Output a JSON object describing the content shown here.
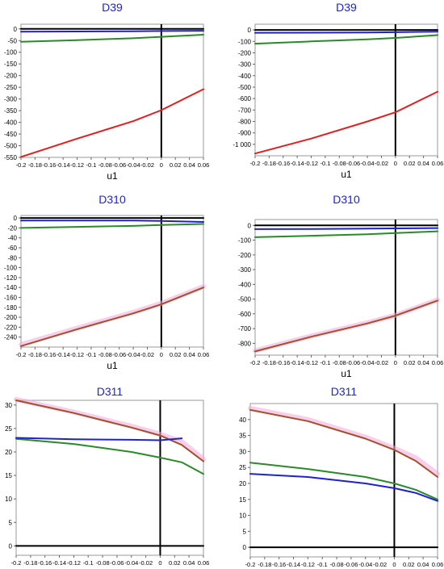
{
  "chart_data": [
    {
      "type": "line",
      "title": "D39",
      "xlabel": "u1",
      "ylabel": "",
      "xlim": [
        -0.2,
        0.06
      ],
      "ylim": [
        -550,
        20
      ],
      "xticks": [
        "-0.2",
        "-0.18",
        "-0.16",
        "-0.14",
        "-0.12",
        "-0.1",
        "-0.08",
        "-0.06",
        "-0.04",
        "-0.02",
        "0",
        "0.02",
        "0.04",
        "0.06"
      ],
      "yticks": [
        "0",
        "-50",
        "-100",
        "-150",
        "-200",
        "-250",
        "-300",
        "-350",
        "-400",
        "-450",
        "-500",
        "-550"
      ],
      "x": [
        -0.2,
        -0.12,
        -0.04,
        0,
        0.06
      ],
      "series": [
        {
          "color": "#000000",
          "values": [
            0,
            0,
            0,
            0,
            0
          ]
        },
        {
          "color": "#2020d0",
          "values": [
            -12,
            -11,
            -10,
            -9,
            -8
          ]
        },
        {
          "color": "#2a8a2a",
          "values": [
            -55,
            -48,
            -40,
            -34,
            -25
          ]
        },
        {
          "color": "#e02020",
          "values": [
            -548,
            -470,
            -395,
            -348,
            -258
          ]
        }
      ]
    },
    {
      "type": "line",
      "title": "D39",
      "xlabel": "u1",
      "ylabel": "",
      "xlim": [
        -0.2,
        0.06
      ],
      "ylim": [
        -1100,
        50
      ],
      "xticks": [
        "-0.2",
        "-0.18",
        "-0.16",
        "-0.14",
        "-0.12",
        "-0.1",
        "-0.08",
        "-0.06",
        "-0.04",
        "-0.02",
        "0",
        "0.02",
        "0.04",
        "0.06"
      ],
      "yticks": [
        "0",
        "-100",
        "-200",
        "-300",
        "-400",
        "-500",
        "-600",
        "-700",
        "-800",
        "-900",
        "-1 000"
      ],
      "x": [
        -0.2,
        -0.12,
        -0.04,
        0,
        0.06
      ],
      "series": [
        {
          "color": "#000000",
          "values": [
            0,
            0,
            0,
            0,
            0
          ]
        },
        {
          "color": "#2020d0",
          "values": [
            -25,
            -24,
            -22,
            -20,
            -15
          ]
        },
        {
          "color": "#2a8a2a",
          "values": [
            -120,
            -100,
            -82,
            -70,
            -45
          ]
        },
        {
          "color": "#e02020",
          "values": [
            -1080,
            -950,
            -800,
            -720,
            -540
          ]
        }
      ]
    },
    {
      "type": "line",
      "title": "D310",
      "xlabel": "u1",
      "ylabel": "",
      "xlim": [
        -0.2,
        0.06
      ],
      "ylim": [
        -260,
        5
      ],
      "xticks": [
        "-0.2",
        "-0.18",
        "-0.16",
        "-0.14",
        "-0.12",
        "-0.1",
        "-0.08",
        "-0.06",
        "-0.04",
        "-0.02",
        "0",
        "0.02",
        "0.04",
        "0.06"
      ],
      "yticks": [
        "0",
        "-20",
        "-40",
        "-60",
        "-80",
        "-100",
        "-120",
        "-140",
        "-160",
        "-180",
        "-200",
        "-220",
        "-240"
      ],
      "x": [
        -0.2,
        -0.12,
        -0.04,
        0,
        0.06
      ],
      "series": [
        {
          "color": "#000000",
          "values": [
            0,
            0,
            0,
            0,
            0
          ]
        },
        {
          "color": "#2020d0",
          "values": [
            -5,
            -5,
            -5,
            -6,
            -8
          ]
        },
        {
          "color": "#2a8a2a",
          "values": [
            -20,
            -18,
            -16,
            -14,
            -12
          ]
        },
        {
          "color": "#f4a6d8",
          "values": [
            -255,
            -222,
            -190,
            -172,
            -138
          ]
        },
        {
          "color": "#a0522d",
          "values": [
            -258,
            -224,
            -192,
            -174,
            -140
          ]
        }
      ]
    },
    {
      "type": "line",
      "title": "D310",
      "xlabel": "u1",
      "ylabel": "",
      "xlim": [
        -0.2,
        0.06
      ],
      "ylim": [
        -880,
        40
      ],
      "xticks": [
        "-0.2",
        "-0.18",
        "-0.16",
        "-0.14",
        "-0.12",
        "-0.1",
        "-0.08",
        "-0.06",
        "-0.04",
        "-0.02",
        "0",
        "0.02",
        "0.04",
        "0.06"
      ],
      "yticks": [
        "0",
        "-100",
        "-200",
        "-300",
        "-400",
        "-500",
        "-600",
        "-700",
        "-800"
      ],
      "x": [
        -0.2,
        -0.12,
        -0.04,
        0,
        0.06
      ],
      "series": [
        {
          "color": "#000000",
          "values": [
            0,
            0,
            0,
            0,
            0
          ]
        },
        {
          "color": "#2020d0",
          "values": [
            -25,
            -24,
            -22,
            -20,
            -18
          ]
        },
        {
          "color": "#2a8a2a",
          "values": [
            -80,
            -70,
            -60,
            -52,
            -40
          ]
        },
        {
          "color": "#f4a6d8",
          "values": [
            -850,
            -750,
            -660,
            -610,
            -505
          ]
        },
        {
          "color": "#a0522d",
          "values": [
            -855,
            -755,
            -665,
            -612,
            -510
          ]
        }
      ]
    },
    {
      "type": "line",
      "title": "D311",
      "xlabel": "u1",
      "ylabel": "",
      "xlim": [
        -0.2,
        0.06
      ],
      "ylim": [
        -2,
        31
      ],
      "xticks": [
        "-0.2",
        "-0.18",
        "-0.16",
        "-0.14",
        "-0.12",
        "-0.1",
        "-0.08",
        "-0.06",
        "-0.04",
        "-0.02",
        "0",
        "0.02",
        "0.04",
        "0.06"
      ],
      "yticks": [
        "30",
        "25",
        "20",
        "15",
        "10",
        "5",
        "0"
      ],
      "x": [
        -0.2,
        -0.12,
        -0.04,
        0,
        0.03,
        0.06
      ],
      "series": [
        {
          "color": "#000000",
          "values": [
            0,
            0,
            0,
            0,
            0,
            0
          ]
        },
        {
          "color": "#f4a6d8",
          "values": [
            31.2,
            28.5,
            25.5,
            23.8,
            22.2,
            18.5
          ]
        },
        {
          "color": "#a0522d",
          "values": [
            31,
            28.3,
            25.2,
            23.5,
            21.5,
            18
          ]
        },
        {
          "color": "#2a8a2a",
          "values": [
            22.8,
            21.7,
            20,
            18.8,
            17.8,
            15.3
          ]
        },
        {
          "color": "#2020d0",
          "values": [
            23,
            22.7,
            22.6,
            22.5,
            22.9,
            null
          ]
        }
      ]
    },
    {
      "type": "line",
      "title": "D311",
      "xlabel": "u1",
      "ylabel": "",
      "xlim": [
        -0.2,
        0.06
      ],
      "ylim": [
        -3,
        45
      ],
      "xticks": [
        "-0.2",
        "-0.18",
        "-0.16",
        "-0.14",
        "-0.12",
        "-0.1",
        "-0.08",
        "-0.06",
        "-0.04",
        "-0.02",
        "0",
        "0.02",
        "0.04",
        "0.06"
      ],
      "yticks": [
        "40",
        "35",
        "30",
        "25",
        "20",
        "15",
        "10",
        "5",
        "0"
      ],
      "x": [
        -0.2,
        -0.12,
        -0.04,
        0,
        0.03,
        0.06
      ],
      "series": [
        {
          "color": "#000000",
          "values": [
            0,
            0,
            0,
            0,
            0,
            0
          ]
        },
        {
          "color": "#f4a6d8",
          "values": [
            43.5,
            40,
            34.5,
            31,
            28,
            23
          ]
        },
        {
          "color": "#a0522d",
          "values": [
            43,
            39.5,
            34,
            30.5,
            27,
            22
          ]
        },
        {
          "color": "#2a8a2a",
          "values": [
            26.5,
            24.5,
            22,
            20,
            18,
            15
          ]
        },
        {
          "color": "#2020d0",
          "values": [
            23,
            22,
            20,
            18.5,
            17,
            14.5
          ]
        }
      ]
    }
  ]
}
